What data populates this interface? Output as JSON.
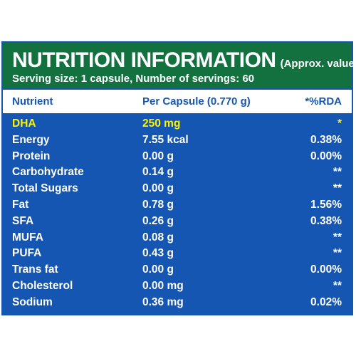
{
  "header": {
    "title": "NUTRITION INFORMATION",
    "subtitle": "(Approx. values):",
    "serving": "Serving size: 1 capsule, Number of servings: 60"
  },
  "columns": {
    "nutrient": "Nutrient",
    "per_capsule": "Per Capsule (0.770 g)",
    "rda": "*%RDA"
  },
  "rows": [
    {
      "nutrient": "DHA",
      "amount": "250 mg",
      "rda": "*"
    },
    {
      "nutrient": "Energy",
      "amount": "7.55 kcal",
      "rda": "0.38%"
    },
    {
      "nutrient": "Protein",
      "amount": "0.00 g",
      "rda": "0.00%"
    },
    {
      "nutrient": "Carbohydrate",
      "amount": "0.14 g",
      "rda": "**"
    },
    {
      "nutrient": "Total Sugars",
      "amount": "0.00 g",
      "rda": "**"
    },
    {
      "nutrient": "Fat",
      "amount": "0.78 g",
      "rda": "1.56%"
    },
    {
      "nutrient": "SFA",
      "amount": "0.26 g",
      "rda": "0.38%"
    },
    {
      "nutrient": "MUFA",
      "amount": "0.08 g",
      "rda": "**"
    },
    {
      "nutrient": "PUFA",
      "amount": "0.43 g",
      "rda": "**"
    },
    {
      "nutrient": "Trans fat",
      "amount": "0.00 g",
      "rda": "0.00%"
    },
    {
      "nutrient": "Cholesterol",
      "amount": "0.00 mg",
      "rda": "**"
    },
    {
      "nutrient": "Sodium",
      "amount": "0.36 mg",
      "rda": "0.02%"
    }
  ],
  "colors": {
    "panel": "#1556b3",
    "header": "#13703f",
    "highlight": "#fff200"
  }
}
